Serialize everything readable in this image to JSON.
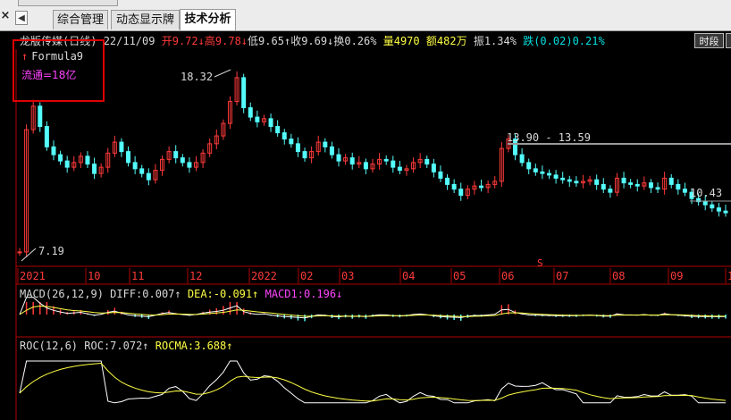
{
  "toolbar": {
    "close_glyph": "×",
    "nav_glyph": "◀",
    "tabs": [
      {
        "label": "综合管理"
      },
      {
        "label": "动态显示牌"
      },
      {
        "label": "技术分析"
      }
    ],
    "active_tab": 2,
    "time_button": "时段"
  },
  "quote": {
    "stock_name": "龙版传媒(日线)",
    "date": "22/11/09",
    "open_label": "开",
    "open_value": "9.72",
    "open_arrow": "↓",
    "high_label": "高",
    "high_value": "9.78",
    "high_arrow": "↓",
    "low_label": "低",
    "low_value": "9.65",
    "low_arrow": "↑",
    "close_label": "收",
    "close_value": "9.69",
    "close_arrow": "↓",
    "turnover_label": "换",
    "turnover_value": "0.26%",
    "volume_label": "量",
    "volume_value": "4970",
    "amount_label": "额",
    "amount_value": "482万",
    "amplitude_label": "振",
    "amplitude_value": "1.34%",
    "change_label": "跌",
    "change_value": "(0.02)",
    "change_pct": "0.21%"
  },
  "overlay": {
    "formula_name": "Formula9",
    "formula_arrow": "↑",
    "float_shares": "流通=18亿"
  },
  "price_labels": {
    "high_mark": "18.32",
    "low_mark": "7.19",
    "range_mark": "13.90 - 13.59",
    "recent_mark": "10.43"
  },
  "months": [
    "2021",
    "10",
    "11",
    "12",
    "2022",
    "02",
    "03",
    "04",
    "05",
    "06",
    "07",
    "08",
    "09",
    "1"
  ],
  "macd": {
    "name": "MACD(26,12,9)",
    "diff_label": "DIFF:",
    "diff_value": "0.007",
    "diff_arrow": "↑",
    "dea_label": "DEA:",
    "dea_value": "-0.091",
    "dea_arrow": "↑",
    "macd_label": "MACD1:",
    "macd_value": "0.196",
    "macd_arrow": "↓"
  },
  "roc": {
    "name": "ROC(12,6)",
    "roc_label": "ROC:",
    "roc_value": "7.072",
    "roc_arrow": "↑",
    "rocma_label": "ROCMA:",
    "rocma_value": "3.688",
    "rocma_arrow": "↑"
  },
  "colors": {
    "up": "#ff3a3a",
    "down": "#54fcfc",
    "dea_line": "#ffff44",
    "diff_line": "#ffffff",
    "panel_border": "#b00000"
  },
  "chart_data": {
    "type": "candlestick",
    "x_labels": [
      "2021",
      "10",
      "11",
      "12",
      "2022",
      "02",
      "03",
      "04",
      "05",
      "06",
      "07",
      "08",
      "09",
      "1"
    ],
    "annotated_prices": [
      18.32,
      7.19,
      13.9,
      13.59,
      10.43
    ],
    "closes": [
      7.19,
      15.0,
      16.5,
      15.2,
      13.9,
      13.4,
      13.0,
      12.6,
      12.9,
      13.3,
      12.8,
      12.2,
      12.6,
      13.5,
      14.2,
      13.6,
      12.9,
      12.5,
      12.2,
      11.8,
      12.4,
      13.1,
      13.6,
      13.2,
      12.9,
      12.6,
      12.9,
      13.5,
      14.1,
      14.6,
      15.4,
      16.8,
      18.32,
      16.4,
      15.8,
      15.5,
      15.7,
      15.2,
      14.8,
      14.4,
      14.1,
      13.6,
      13.2,
      13.6,
      14.2,
      13.9,
      13.4,
      13.0,
      13.2,
      12.8,
      12.9,
      12.5,
      12.8,
      13.1,
      13.0,
      12.6,
      12.4,
      12.5,
      12.9,
      13.1,
      12.8,
      12.3,
      11.9,
      11.5,
      11.2,
      10.8,
      11.2,
      11.4,
      11.3,
      11.5,
      11.7,
      13.8,
      14.4,
      13.4,
      12.9,
      12.5,
      12.3,
      12.2,
      12.1,
      11.9,
      11.8,
      11.7,
      11.6,
      11.7,
      11.8,
      11.5,
      11.2,
      11.0,
      11.9,
      11.6,
      11.5,
      11.4,
      11.6,
      11.3,
      11.2,
      11.9,
      11.5,
      11.2,
      11.0,
      10.6,
      10.4,
      10.2,
      10.0,
      9.8,
      9.69
    ]
  }
}
